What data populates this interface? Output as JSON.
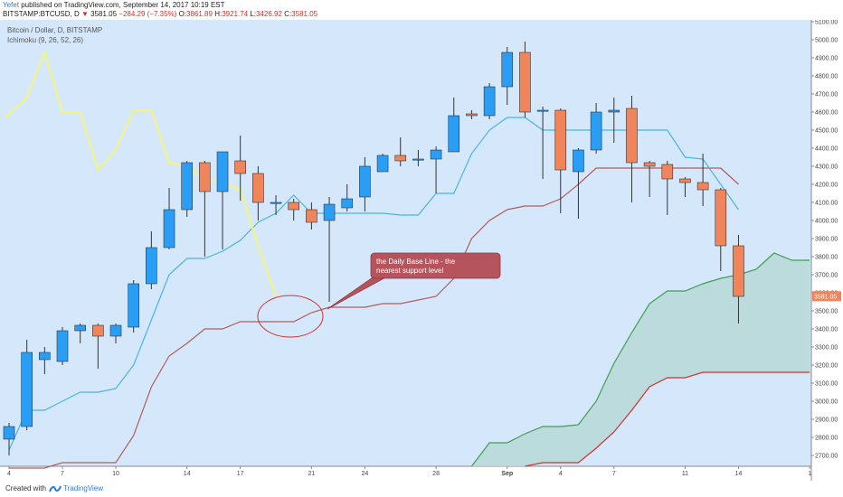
{
  "header": {
    "author": "Yefet",
    "published": "published on TradingView.com, September 14, 2017 10:19 EST",
    "symbol": "BITSTAMP:BTCUSD, D",
    "last": "3581.05",
    "change": "−284.29 (−7.35%)",
    "o_label": "O:",
    "o": "3861.89",
    "h_label": "H:",
    "h": "3921.74",
    "l_label": "L:",
    "l": "3426.92",
    "c_label": "C:",
    "c": "3581.05"
  },
  "legend": {
    "line1": "Bitcoin / Dollar, D, BITSTAMP",
    "line2": "Ichimoku (9, 26, 52, 26)"
  },
  "annotation": {
    "line1": "the Daily Base Line - the",
    "line2": "nearest support level"
  },
  "footer": {
    "created": "Created with",
    "brand": "TradingView"
  },
  "colors": {
    "plot_bg": "#d5e8fb",
    "up": "#2a9df4",
    "down": "#f0845a",
    "tenkan": "#4bb3e3",
    "kijun": "#b25c5c",
    "chikou": "#f4f47a",
    "span_a": "#3f9e52",
    "span_b": "#d0312d",
    "cloud": "#b8d9d9",
    "annotation_fill": "#b5545c",
    "price_label": "#f0845a"
  },
  "chart_data": {
    "type": "candlestick",
    "title": "Bitcoin / Dollar, D, BITSTAMP",
    "ylim": [
      2640,
      5110
    ],
    "y_ticks": [
      2700,
      2800,
      2900,
      3000,
      3100,
      3200,
      3300,
      3400,
      3500,
      3600,
      3700,
      3800,
      3900,
      4000,
      4100,
      4200,
      4300,
      4400,
      4500,
      4600,
      4700,
      4800,
      4900,
      5000,
      5100
    ],
    "x_labels": [
      {
        "i": 0,
        "label": "4"
      },
      {
        "i": 3,
        "label": "7"
      },
      {
        "i": 6,
        "label": "10"
      },
      {
        "i": 10,
        "label": "14"
      },
      {
        "i": 13,
        "label": "17"
      },
      {
        "i": 17,
        "label": "21"
      },
      {
        "i": 20,
        "label": "24"
      },
      {
        "i": 24,
        "label": "28"
      },
      {
        "i": 28,
        "label": "Sep"
      },
      {
        "i": 31,
        "label": "4"
      },
      {
        "i": 34,
        "label": "7"
      },
      {
        "i": 38,
        "label": "11"
      },
      {
        "i": 41,
        "label": "14"
      },
      {
        "i": 45,
        "label": "1"
      }
    ],
    "last_price": "3581.05",
    "candles": [
      {
        "o": 2790,
        "h": 2880,
        "l": 2700,
        "c": 2860
      },
      {
        "o": 2860,
        "h": 3340,
        "l": 2840,
        "c": 3270
      },
      {
        "o": 3230,
        "h": 3300,
        "l": 3150,
        "c": 3270
      },
      {
        "o": 3220,
        "h": 3410,
        "l": 3200,
        "c": 3390
      },
      {
        "o": 3390,
        "h": 3430,
        "l": 3320,
        "c": 3420
      },
      {
        "o": 3420,
        "h": 3430,
        "l": 3180,
        "c": 3360
      },
      {
        "o": 3360,
        "h": 3430,
        "l": 3320,
        "c": 3420
      },
      {
        "o": 3410,
        "h": 3670,
        "l": 3380,
        "c": 3650
      },
      {
        "o": 3650,
        "h": 3940,
        "l": 3620,
        "c": 3850
      },
      {
        "o": 3850,
        "h": 4180,
        "l": 3840,
        "c": 4060
      },
      {
        "o": 4060,
        "h": 4330,
        "l": 4020,
        "c": 4320
      },
      {
        "o": 4320,
        "h": 4330,
        "l": 3800,
        "c": 4160
      },
      {
        "o": 4160,
        "h": 4380,
        "l": 3840,
        "c": 4380
      },
      {
        "o": 4330,
        "h": 4470,
        "l": 4110,
        "c": 4260
      },
      {
        "o": 4260,
        "h": 4300,
        "l": 4000,
        "c": 4100
      },
      {
        "o": 4100,
        "h": 4140,
        "l": 4030,
        "c": 4100
      },
      {
        "o": 4100,
        "h": 4120,
        "l": 4000,
        "c": 4060
      },
      {
        "o": 4060,
        "h": 4100,
        "l": 3950,
        "c": 3990
      },
      {
        "o": 4000,
        "h": 4130,
        "l": 3550,
        "c": 4090
      },
      {
        "o": 4070,
        "h": 4200,
        "l": 4050,
        "c": 4120
      },
      {
        "o": 4130,
        "h": 4350,
        "l": 4050,
        "c": 4300
      },
      {
        "o": 4270,
        "h": 4370,
        "l": 4270,
        "c": 4360
      },
      {
        "o": 4360,
        "h": 4460,
        "l": 4300,
        "c": 4330
      },
      {
        "o": 4340,
        "h": 4390,
        "l": 4300,
        "c": 4340
      },
      {
        "o": 4340,
        "h": 4410,
        "l": 4150,
        "c": 4390
      },
      {
        "o": 4380,
        "h": 4680,
        "l": 4380,
        "c": 4580
      },
      {
        "o": 4590,
        "h": 4610,
        "l": 4560,
        "c": 4580
      },
      {
        "o": 4580,
        "h": 4760,
        "l": 4560,
        "c": 4740
      },
      {
        "o": 4740,
        "h": 4960,
        "l": 4640,
        "c": 4930
      },
      {
        "o": 4930,
        "h": 4990,
        "l": 4570,
        "c": 4600
      },
      {
        "o": 4610,
        "h": 4630,
        "l": 4230,
        "c": 4610
      },
      {
        "o": 4610,
        "h": 4620,
        "l": 4040,
        "c": 4280
      },
      {
        "o": 4270,
        "h": 4400,
        "l": 4010,
        "c": 4390
      },
      {
        "o": 4390,
        "h": 4650,
        "l": 4370,
        "c": 4600
      },
      {
        "o": 4600,
        "h": 4680,
        "l": 4430,
        "c": 4610
      },
      {
        "o": 4620,
        "h": 4690,
        "l": 4100,
        "c": 4320
      },
      {
        "o": 4320,
        "h": 4330,
        "l": 4130,
        "c": 4300
      },
      {
        "o": 4310,
        "h": 4330,
        "l": 4030,
        "c": 4230
      },
      {
        "o": 4230,
        "h": 4240,
        "l": 4130,
        "c": 4210
      },
      {
        "o": 4210,
        "h": 4370,
        "l": 4080,
        "c": 4170
      },
      {
        "o": 4170,
        "h": 4180,
        "l": 3720,
        "c": 3860
      },
      {
        "o": 3860,
        "h": 3920,
        "l": 3430,
        "c": 3580
      }
    ],
    "tenkan": [
      {
        "i": 0,
        "v": 2730
      },
      {
        "i": 1,
        "v": 2950
      },
      {
        "i": 2,
        "v": 2950
      },
      {
        "i": 3,
        "v": 3000
      },
      {
        "i": 4,
        "v": 3050
      },
      {
        "i": 5,
        "v": 3050
      },
      {
        "i": 6,
        "v": 3070
      },
      {
        "i": 7,
        "v": 3200
      },
      {
        "i": 8,
        "v": 3450
      },
      {
        "i": 9,
        "v": 3700
      },
      {
        "i": 10,
        "v": 3790
      },
      {
        "i": 11,
        "v": 3790
      },
      {
        "i": 12,
        "v": 3830
      },
      {
        "i": 13,
        "v": 3890
      },
      {
        "i": 14,
        "v": 3990
      },
      {
        "i": 15,
        "v": 4040
      },
      {
        "i": 16,
        "v": 4140
      },
      {
        "i": 17,
        "v": 4040
      },
      {
        "i": 18,
        "v": 4040
      },
      {
        "i": 19,
        "v": 4040
      },
      {
        "i": 20,
        "v": 4040
      },
      {
        "i": 21,
        "v": 4040
      },
      {
        "i": 22,
        "v": 4030
      },
      {
        "i": 23,
        "v": 4030
      },
      {
        "i": 24,
        "v": 4150
      },
      {
        "i": 25,
        "v": 4150
      },
      {
        "i": 26,
        "v": 4370
      },
      {
        "i": 27,
        "v": 4500
      },
      {
        "i": 28,
        "v": 4570
      },
      {
        "i": 29,
        "v": 4570
      },
      {
        "i": 30,
        "v": 4500
      },
      {
        "i": 31,
        "v": 4500
      },
      {
        "i": 32,
        "v": 4500
      },
      {
        "i": 33,
        "v": 4500
      },
      {
        "i": 34,
        "v": 4500
      },
      {
        "i": 35,
        "v": 4500
      },
      {
        "i": 36,
        "v": 4500
      },
      {
        "i": 37,
        "v": 4500
      },
      {
        "i": 38,
        "v": 4350
      },
      {
        "i": 39,
        "v": 4340
      },
      {
        "i": 40,
        "v": 4200
      },
      {
        "i": 41,
        "v": 4060
      }
    ],
    "kijun": [
      {
        "i": 0,
        "v": 2630
      },
      {
        "i": 1,
        "v": 2630
      },
      {
        "i": 2,
        "v": 2630
      },
      {
        "i": 3,
        "v": 2660
      },
      {
        "i": 4,
        "v": 2660
      },
      {
        "i": 5,
        "v": 2660
      },
      {
        "i": 6,
        "v": 2660
      },
      {
        "i": 7,
        "v": 2810
      },
      {
        "i": 8,
        "v": 3080
      },
      {
        "i": 9,
        "v": 3250
      },
      {
        "i": 10,
        "v": 3320
      },
      {
        "i": 11,
        "v": 3400
      },
      {
        "i": 12,
        "v": 3400
      },
      {
        "i": 13,
        "v": 3440
      },
      {
        "i": 14,
        "v": 3440
      },
      {
        "i": 15,
        "v": 3440
      },
      {
        "i": 16,
        "v": 3440
      },
      {
        "i": 17,
        "v": 3490
      },
      {
        "i": 18,
        "v": 3520
      },
      {
        "i": 19,
        "v": 3520
      },
      {
        "i": 20,
        "v": 3520
      },
      {
        "i": 21,
        "v": 3540
      },
      {
        "i": 22,
        "v": 3540
      },
      {
        "i": 23,
        "v": 3560
      },
      {
        "i": 24,
        "v": 3580
      },
      {
        "i": 25,
        "v": 3680
      },
      {
        "i": 26,
        "v": 3900
      },
      {
        "i": 27,
        "v": 4000
      },
      {
        "i": 28,
        "v": 4060
      },
      {
        "i": 29,
        "v": 4080
      },
      {
        "i": 30,
        "v": 4080
      },
      {
        "i": 31,
        "v": 4120
      },
      {
        "i": 32,
        "v": 4200
      },
      {
        "i": 33,
        "v": 4290
      },
      {
        "i": 34,
        "v": 4290
      },
      {
        "i": 35,
        "v": 4290
      },
      {
        "i": 36,
        "v": 4290
      },
      {
        "i": 37,
        "v": 4290
      },
      {
        "i": 38,
        "v": 4290
      },
      {
        "i": 39,
        "v": 4290
      },
      {
        "i": 40,
        "v": 4290
      },
      {
        "i": 41,
        "v": 4200
      }
    ],
    "chikou": [
      {
        "i": -0.2,
        "v": 4570
      },
      {
        "i": 1,
        "v": 4680
      },
      {
        "i": 2,
        "v": 4930
      },
      {
        "i": 3,
        "v": 4600
      },
      {
        "i": 4,
        "v": 4600
      },
      {
        "i": 5,
        "v": 4280
      },
      {
        "i": 6,
        "v": 4390
      },
      {
        "i": 7,
        "v": 4610
      },
      {
        "i": 8,
        "v": 4610
      },
      {
        "i": 9,
        "v": 4320
      },
      {
        "i": 10,
        "v": 4300
      },
      {
        "i": 11,
        "v": 4230
      },
      {
        "i": 12,
        "v": 4210
      },
      {
        "i": 13,
        "v": 4170
      },
      {
        "i": 14,
        "v": 3860
      },
      {
        "i": 15,
        "v": 3580
      }
    ],
    "span_a": [
      {
        "i": 26,
        "v": 2640
      },
      {
        "i": 27,
        "v": 2770
      },
      {
        "i": 28,
        "v": 2770
      },
      {
        "i": 29,
        "v": 2820
      },
      {
        "i": 30,
        "v": 2860
      },
      {
        "i": 31,
        "v": 2860
      },
      {
        "i": 32,
        "v": 2870
      },
      {
        "i": 33,
        "v": 3000
      },
      {
        "i": 34,
        "v": 3210
      },
      {
        "i": 35,
        "v": 3380
      },
      {
        "i": 36,
        "v": 3540
      },
      {
        "i": 37,
        "v": 3610
      },
      {
        "i": 38,
        "v": 3610
      },
      {
        "i": 39,
        "v": 3650
      },
      {
        "i": 40,
        "v": 3680
      },
      {
        "i": 41,
        "v": 3700
      },
      {
        "i": 42,
        "v": 3730
      },
      {
        "i": 43,
        "v": 3820
      },
      {
        "i": 44,
        "v": 3780
      },
      {
        "i": 45,
        "v": 3780
      }
    ],
    "span_b": [
      {
        "i": 29,
        "v": 2640
      },
      {
        "i": 30,
        "v": 2660
      },
      {
        "i": 31,
        "v": 2660
      },
      {
        "i": 32,
        "v": 2660
      },
      {
        "i": 33,
        "v": 2740
      },
      {
        "i": 34,
        "v": 2830
      },
      {
        "i": 35,
        "v": 2950
      },
      {
        "i": 36,
        "v": 3080
      },
      {
        "i": 37,
        "v": 3130
      },
      {
        "i": 38,
        "v": 3130
      },
      {
        "i": 39,
        "v": 3160
      },
      {
        "i": 40,
        "v": 3160
      },
      {
        "i": 41,
        "v": 3160
      },
      {
        "i": 42,
        "v": 3160
      },
      {
        "i": 43,
        "v": 3160
      },
      {
        "i": 44,
        "v": 3160
      },
      {
        "i": 45,
        "v": 3160
      }
    ]
  }
}
